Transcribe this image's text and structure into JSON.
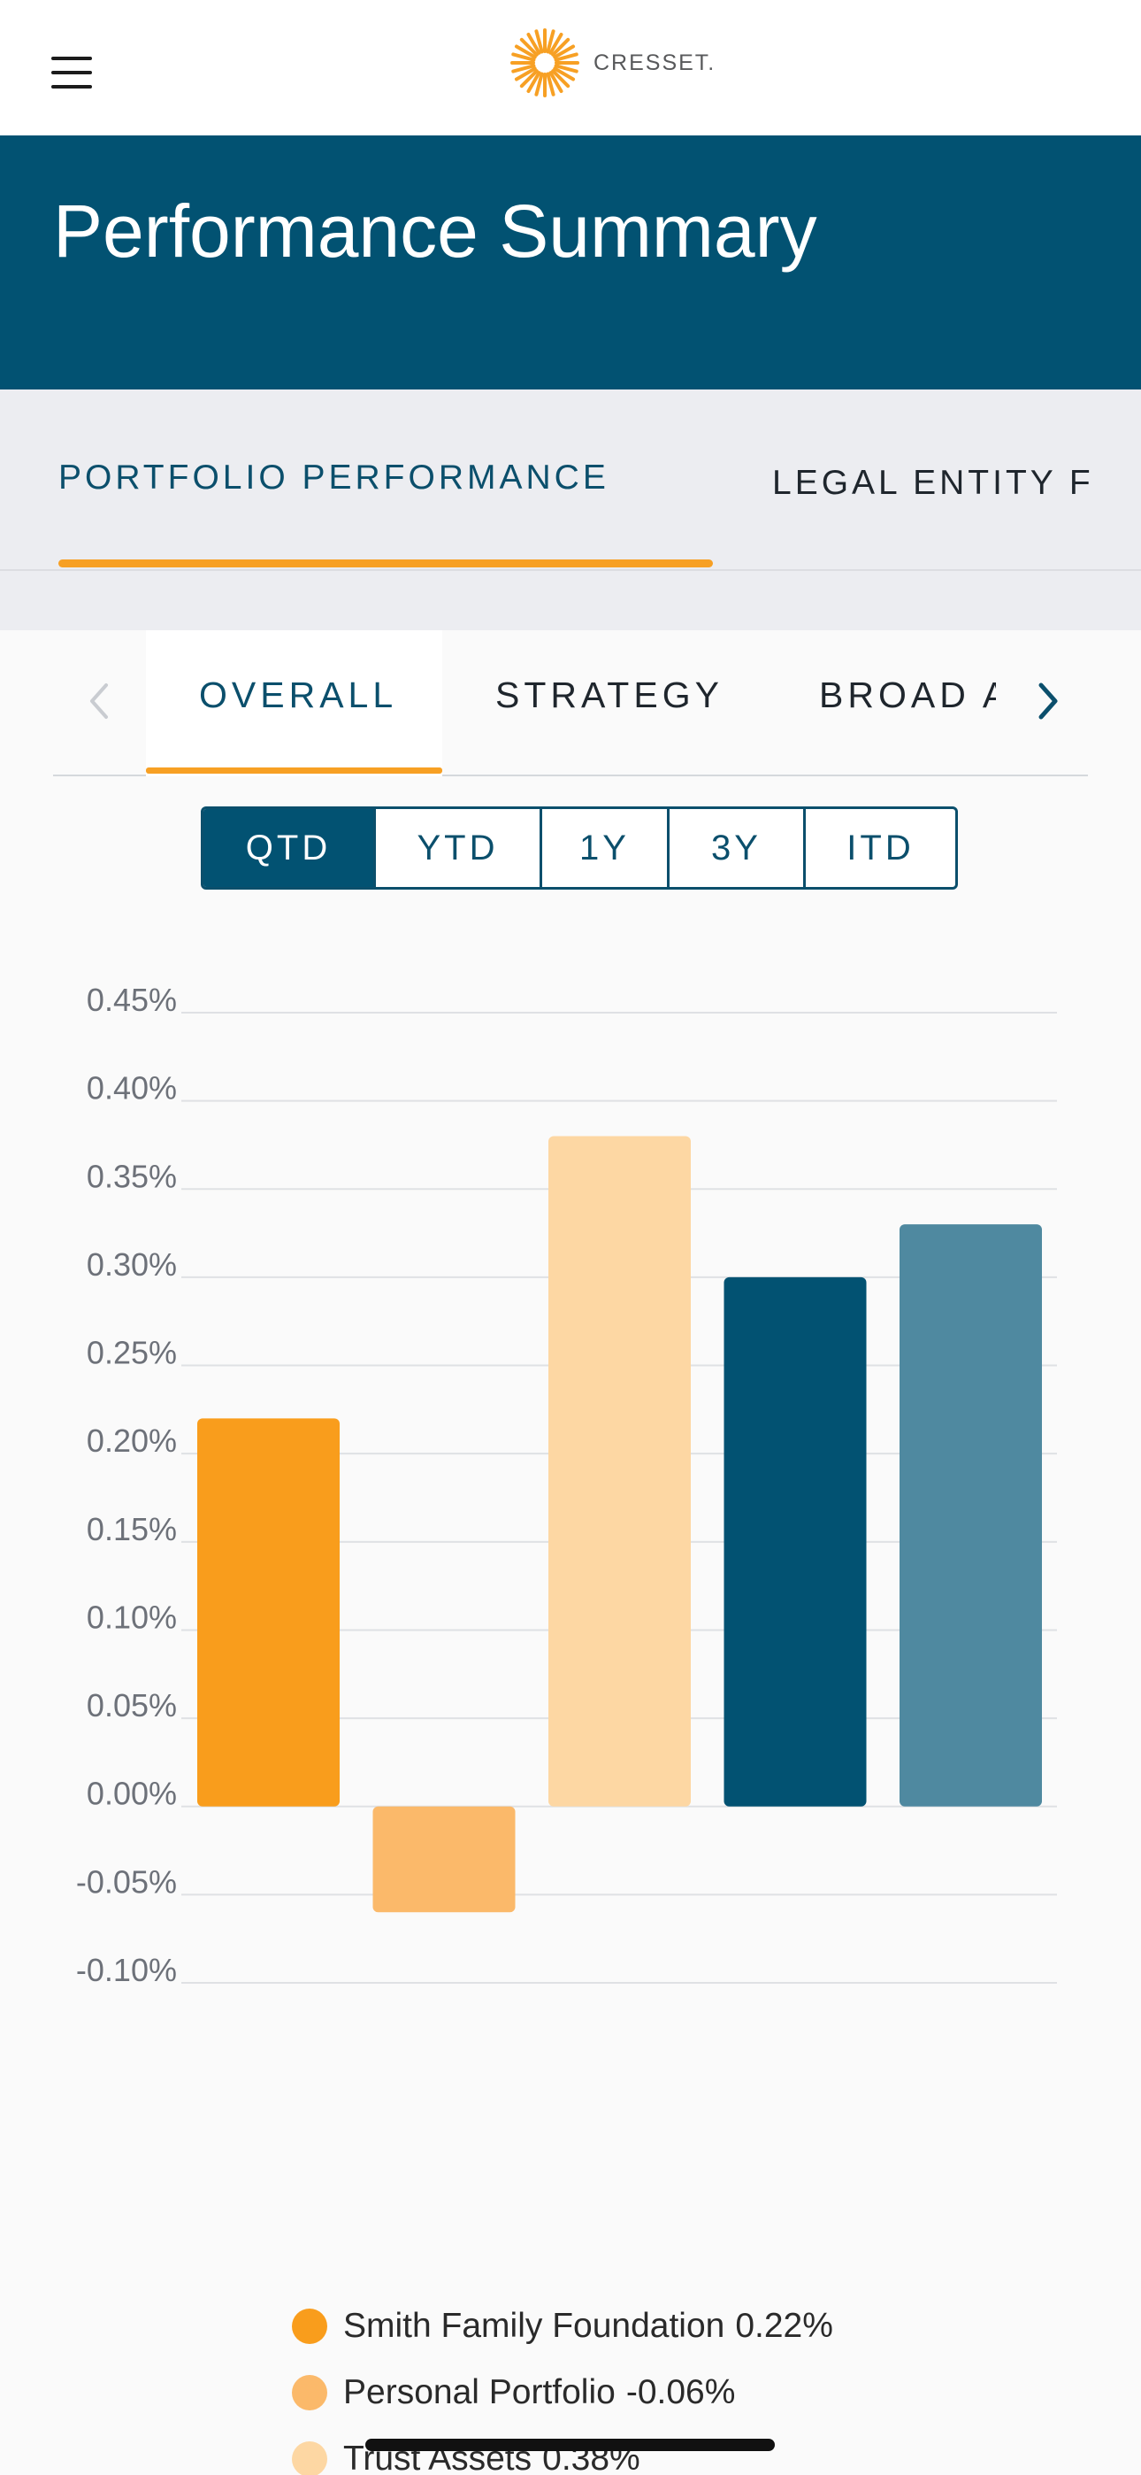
{
  "header": {
    "logo_text": "CRESSET.",
    "menu_icon": "hamburger-menu-icon",
    "logo_icon": "sunburst-logo-icon",
    "logo_color": "#f7a024"
  },
  "banner": {
    "title": "Performance Summary",
    "background": "#025272"
  },
  "main_tabs": [
    {
      "label": "PORTFOLIO PERFORMANCE",
      "active": true
    },
    {
      "label": "LEGAL ENTITY F",
      "active": false
    }
  ],
  "sub_tabs": {
    "items": [
      {
        "label": "OVERALL",
        "active": true
      },
      {
        "label": "STRATEGY",
        "active": false
      },
      {
        "label": "BROAD A",
        "active": false
      }
    ],
    "prev_icon": "chevron-left-icon",
    "next_icon": "chevron-right-icon"
  },
  "periods": {
    "items": [
      "QTD",
      "YTD",
      "1Y",
      "3Y",
      "ITD"
    ],
    "selected": "QTD"
  },
  "chart_data": {
    "type": "bar",
    "categories": [
      "Smith Family Foundation",
      "Personal Portfolio",
      "Trust Assets",
      "",
      ""
    ],
    "values": [
      0.22,
      -0.06,
      0.38,
      0.3,
      0.33
    ],
    "colors": [
      "#f99d1c",
      "#fbb96a",
      "#fdd7a3",
      "#025272",
      "#4f89a0"
    ],
    "ylim": [
      -0.1,
      0.45
    ],
    "yticks": [
      "0.45%",
      "0.40%",
      "0.35%",
      "0.30%",
      "0.25%",
      "0.20%",
      "0.15%",
      "0.10%",
      "0.05%",
      "0.00%",
      "-0.05%",
      "-0.10%"
    ],
    "ytick_values": [
      0.45,
      0.4,
      0.35,
      0.3,
      0.25,
      0.2,
      0.15,
      0.1,
      0.05,
      0.0,
      -0.05,
      -0.1
    ],
    "grid": true
  },
  "legend": [
    {
      "name": "Smith Family Foundation",
      "value": "0.22%",
      "color": "#f99d1c"
    },
    {
      "name": "Personal Portfolio",
      "value": "-0.06%",
      "color": "#fbb96a"
    },
    {
      "name": "Trust Assets",
      "value": "0.38%",
      "color": "#fdd7a3"
    }
  ]
}
